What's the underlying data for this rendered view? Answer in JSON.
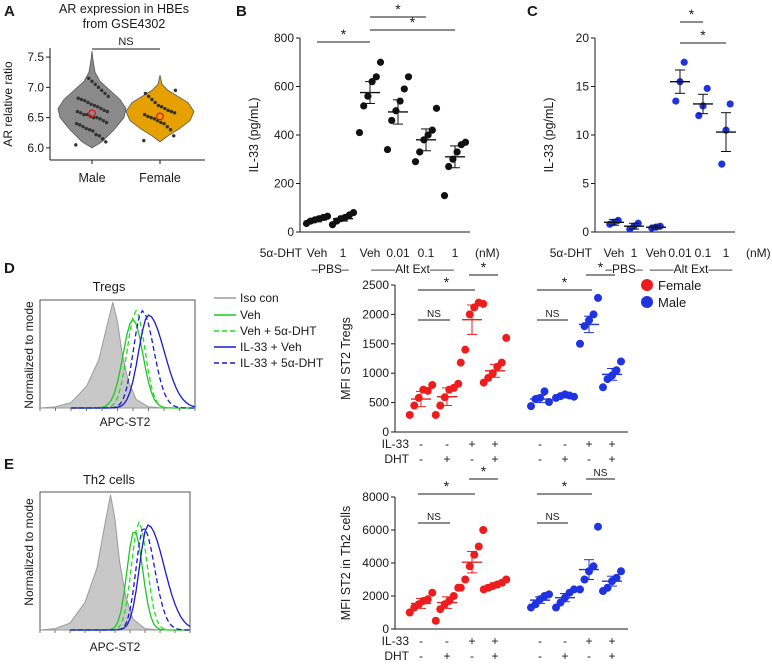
{
  "panels": {
    "A": "A",
    "B": "B",
    "C": "C",
    "D": "D",
    "E": "E"
  },
  "colors": {
    "male_violin": "#8a8a8a",
    "female_violin": "#e6a100",
    "female": "#ee1c1c",
    "male": "#1f33e0",
    "points_bw": "#111111",
    "iso_fill": "#c8c8c8",
    "veh_green": "#1ec81e",
    "veh_dht_green": "#22dd22",
    "il33_blue": "#1a1ad0"
  },
  "legend": {
    "female": "Female",
    "male": "Male",
    "flow": [
      "Iso con",
      "Veh",
      "Veh + 5α-DHT",
      "IL-33 + Veh",
      "IL-33 + 5α-DHT"
    ]
  },
  "histograms": {
    "D": {
      "title": "Tregs",
      "ylabel": "Normalized to mode",
      "xlabel": "APC-ST2"
    },
    "E": {
      "title": "Th2 cells",
      "ylabel": "Normalized to mode",
      "xlabel": "APC-ST2"
    }
  },
  "chart_data": [
    {
      "id": "A",
      "type": "violin",
      "title": "AR expression in HBEs\nfrom GSE4302",
      "ylabel": "AR relative ratio",
      "categories": [
        "Male",
        "Female"
      ],
      "ylim": [
        5.8,
        7.65
      ],
      "yticks": [
        "6.0",
        "6.5",
        "7.0",
        "7.5"
      ],
      "sig": "NS",
      "means": [
        6.57,
        6.52
      ],
      "series": [
        {
          "name": "Male",
          "values": [
            6.05,
            6.1,
            6.15,
            6.2,
            6.22,
            6.28,
            6.3,
            6.32,
            6.35,
            6.38,
            6.4,
            6.42,
            6.45,
            6.48,
            6.5,
            6.5,
            6.52,
            6.55,
            6.55,
            6.58,
            6.6,
            6.6,
            6.62,
            6.65,
            6.68,
            6.7,
            6.72,
            6.75,
            6.78,
            6.8,
            6.82,
            6.85,
            6.9,
            6.95,
            7.0,
            7.05,
            7.1,
            7.15
          ]
        },
        {
          "name": "Female",
          "values": [
            6.12,
            6.2,
            6.3,
            6.35,
            6.4,
            6.42,
            6.45,
            6.48,
            6.5,
            6.52,
            6.55,
            6.58,
            6.6,
            6.62,
            6.65,
            6.68,
            6.7,
            6.75,
            6.8,
            6.85,
            6.9,
            6.95
          ]
        }
      ]
    },
    {
      "id": "B",
      "type": "scatter",
      "ylabel": "IL-33 (pg/mL)",
      "ylim": [
        0,
        800
      ],
      "yticks": [
        "0",
        "200",
        "400",
        "600",
        "800"
      ],
      "treatment_label": "5α-DHT",
      "unit_label": "(nM)",
      "groups": [
        "–PBS–",
        "——Alt Ext——"
      ],
      "categories": [
        "Veh",
        "1",
        "Veh",
        "0.01",
        "0.1",
        "1"
      ],
      "means": [
        50,
        55,
        575,
        495,
        380,
        310
      ],
      "sems": [
        8,
        10,
        45,
        50,
        45,
        45
      ],
      "series": [
        {
          "name": "PBS Veh",
          "values": [
            35,
            45,
            50,
            55,
            60,
            65
          ]
        },
        {
          "name": "PBS 1",
          "values": [
            30,
            45,
            55,
            60,
            70,
            80
          ]
        },
        {
          "name": "Alt Veh",
          "values": [
            410,
            520,
            560,
            620,
            640,
            700
          ]
        },
        {
          "name": "Alt 0.01",
          "values": [
            340,
            460,
            500,
            540,
            590,
            640
          ]
        },
        {
          "name": "Alt 0.1",
          "values": [
            290,
            330,
            380,
            400,
            420,
            510
          ]
        },
        {
          "name": "Alt 1",
          "values": [
            150,
            270,
            300,
            330,
            360,
            370
          ]
        }
      ],
      "significance": [
        [
          "*",
          0,
          2
        ],
        [
          "*",
          2,
          4
        ],
        [
          "*",
          2,
          5
        ]
      ]
    },
    {
      "id": "C",
      "type": "scatter",
      "ylabel": "IL-33 (pg/mL)",
      "ylim": [
        0,
        20
      ],
      "yticks": [
        "0",
        "5",
        "10",
        "15",
        "20"
      ],
      "treatment_label": "5α-DHT",
      "unit_label": "(nM)",
      "groups": [
        "–PBS–",
        "——Alt Ext——"
      ],
      "categories": [
        "Veh",
        "1",
        "Veh",
        "0.01",
        "0.1",
        "1"
      ],
      "means": [
        1.0,
        0.6,
        0.5,
        15.5,
        13.2,
        10.3
      ],
      "sems": [
        0.3,
        0.3,
        0.2,
        1.2,
        1.0,
        2.0
      ],
      "series": [
        {
          "name": "PBS Veh",
          "values": [
            0.8,
            1.0,
            1.2
          ]
        },
        {
          "name": "PBS 1",
          "values": [
            0.3,
            0.6,
            0.9
          ]
        },
        {
          "name": "Alt Veh",
          "values": [
            0.4,
            0.5,
            0.6
          ]
        },
        {
          "name": "Alt 0.01",
          "values": [
            13.5,
            15.5,
            17.5
          ]
        },
        {
          "name": "Alt 0.1",
          "values": [
            12.0,
            13.0,
            14.8
          ]
        },
        {
          "name": "Alt 1",
          "values": [
            7.0,
            10.5,
            13.2
          ]
        }
      ],
      "significance": [
        [
          "*",
          3,
          4
        ],
        [
          "*",
          3,
          5
        ]
      ]
    },
    {
      "id": "D",
      "type": "scatter",
      "ylabel": "MFI ST2 Tregs",
      "ylim": [
        0,
        2500
      ],
      "yticks": [
        "0",
        "500",
        "1000",
        "1500",
        "2000",
        "2500"
      ],
      "row1_label": "IL-33",
      "row2_label": "DHT",
      "row1": [
        "-",
        "-",
        "+",
        "+",
        "-",
        "-",
        "+",
        "+"
      ],
      "row2": [
        "-",
        "+",
        "-",
        "+",
        "-",
        "+",
        "-",
        "+"
      ],
      "means": [
        560,
        600,
        1910,
        1040,
        560,
        610,
        1830,
        980
      ],
      "sems": [
        130,
        150,
        250,
        110,
        60,
        30,
        140,
        100
      ],
      "series": [
        {
          "name": "Female -/-",
          "sex": "Female",
          "values": [
            290,
            450,
            580,
            720,
            700,
            800
          ]
        },
        {
          "name": "Female -/+",
          "sex": "Female",
          "values": [
            290,
            450,
            590,
            720,
            750,
            820
          ]
        },
        {
          "name": "Female +/-",
          "sex": "Female",
          "values": [
            1180,
            1400,
            2000,
            2120,
            2200,
            2180
          ]
        },
        {
          "name": "Female +/+",
          "sex": "Female",
          "values": [
            840,
            920,
            1000,
            1110,
            1180,
            1600
          ]
        },
        {
          "name": "Male -/-",
          "sex": "Male",
          "values": [
            440,
            560,
            580,
            690,
            510
          ]
        },
        {
          "name": "Male -/+",
          "sex": "Male",
          "values": [
            580,
            610,
            640,
            620,
            600
          ]
        },
        {
          "name": "Male +/-",
          "sex": "Male",
          "values": [
            1500,
            1800,
            1900,
            2000,
            2280
          ]
        },
        {
          "name": "Male +/+",
          "sex": "Male",
          "values": [
            760,
            900,
            960,
            1050,
            1200
          ]
        }
      ],
      "significance": [
        [
          "NS",
          0,
          1
        ],
        [
          "*",
          0,
          2
        ],
        [
          "*",
          2,
          3
        ],
        [
          "NS",
          4,
          5
        ],
        [
          "*",
          4,
          6
        ],
        [
          "*",
          6,
          7
        ]
      ]
    },
    {
      "id": "E",
      "type": "scatter",
      "ylabel": "MFI ST2 in Th2 cells",
      "ylim": [
        0,
        8000
      ],
      "yticks": [
        "0",
        "2000",
        "4000",
        "6000",
        "8000"
      ],
      "row1_label": "IL-33",
      "row2_label": "DHT",
      "row1": [
        "-",
        "-",
        "+",
        "+",
        "-",
        "-",
        "+",
        "+"
      ],
      "row2": [
        "-",
        "+",
        "-",
        "+",
        "-",
        "+",
        "-",
        "+"
      ],
      "means": [
        1550,
        1600,
        4050,
        2650,
        1750,
        1900,
        3600,
        2900
      ],
      "sems": [
        300,
        350,
        650,
        150,
        200,
        250,
        600,
        300
      ],
      "series": [
        {
          "name": "Female -/-",
          "sex": "Female",
          "values": [
            1000,
            1300,
            1500,
            1700,
            1800,
            2200
          ]
        },
        {
          "name": "Female -/+",
          "sex": "Female",
          "values": [
            500,
            1200,
            1500,
            1700,
            2000,
            2500
          ]
        },
        {
          "name": "Female +/-",
          "sex": "Female",
          "values": [
            2500,
            3000,
            3800,
            4500,
            5000,
            6000
          ]
        },
        {
          "name": "Female +/+",
          "sex": "Female",
          "values": [
            2400,
            2500,
            2600,
            2700,
            2800,
            3000
          ]
        },
        {
          "name": "Male -/-",
          "sex": "Male",
          "values": [
            1300,
            1500,
            1800,
            2000,
            2100
          ]
        },
        {
          "name": "Male -/+",
          "sex": "Male",
          "values": [
            1300,
            1600,
            1900,
            2200,
            2400
          ]
        },
        {
          "name": "Male +/-",
          "sex": "Male",
          "values": [
            2400,
            3000,
            3500,
            3800,
            6200
          ]
        },
        {
          "name": "Male +/+",
          "sex": "Male",
          "values": [
            2300,
            2500,
            2900,
            3100,
            3500
          ]
        }
      ],
      "significance": [
        [
          "NS",
          0,
          1
        ],
        [
          "*",
          0,
          2
        ],
        [
          "*",
          2,
          3
        ],
        [
          "NS",
          4,
          5
        ],
        [
          "*",
          4,
          6
        ],
        [
          "NS",
          6,
          7
        ]
      ]
    }
  ]
}
